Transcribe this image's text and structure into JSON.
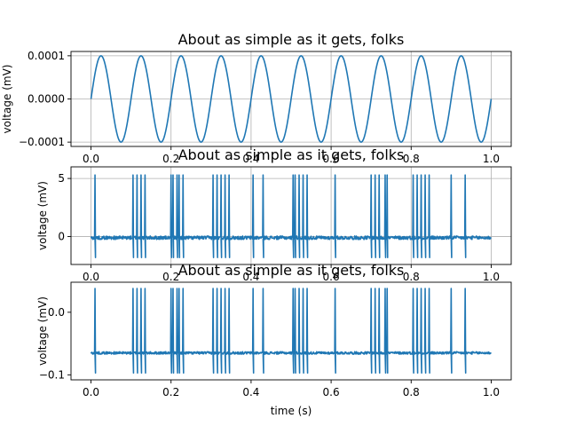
{
  "figure": {
    "background": "#ffffff",
    "line_color": "#1f77b4"
  },
  "chart_data": [
    {
      "type": "line",
      "title": "About as simple as it gets, folks",
      "xlabel": "",
      "ylabel": "voltage (mV)",
      "xlim": [
        -0.05,
        1.05
      ],
      "ylim": [
        -0.00011,
        0.00011
      ],
      "xticks": [
        "0.0",
        "0.2",
        "0.4",
        "0.6",
        "0.8",
        "1.0"
      ],
      "xtick_values": [
        0.0,
        0.2,
        0.4,
        0.6,
        0.8,
        1.0
      ],
      "yticks": [
        "−0.0001",
        "0.0000",
        "0.0001"
      ],
      "ytick_values": [
        -0.0001,
        0.0,
        0.0001
      ],
      "grid": true,
      "series": [
        {
          "kind": "sine",
          "amplitude": 0.0001,
          "frequency_hz": 10,
          "x_range": [
            0,
            1
          ]
        }
      ]
    },
    {
      "type": "line",
      "title": "About as simple as it gets, folks",
      "xlabel": "",
      "ylabel": "voltage (mV)",
      "xlim": [
        -0.05,
        1.05
      ],
      "ylim": [
        -2.4,
        6.0
      ],
      "xticks": [
        "0.0",
        "0.2",
        "0.4",
        "0.6",
        "0.8",
        "1.0"
      ],
      "xtick_values": [
        0.0,
        0.2,
        0.4,
        0.6,
        0.8,
        1.0
      ],
      "yticks": [
        "0",
        "5"
      ],
      "ytick_values": [
        0,
        5
      ],
      "grid": true,
      "series": [
        {
          "kind": "spike_train",
          "baseline": -0.1,
          "noise": 0.15,
          "spike_peak": 5.3,
          "spike_trough": -1.8,
          "spike_times": [
            0.01,
            0.105,
            0.115,
            0.125,
            0.135,
            0.2,
            0.205,
            0.215,
            0.22,
            0.23,
            0.305,
            0.315,
            0.325,
            0.335,
            0.345,
            0.405,
            0.43,
            0.505,
            0.51,
            0.52,
            0.53,
            0.54,
            0.61,
            0.7,
            0.71,
            0.72,
            0.735,
            0.74,
            0.805,
            0.815,
            0.825,
            0.835,
            0.845,
            0.9,
            0.935
          ]
        }
      ]
    },
    {
      "type": "line",
      "title": "About as simple as it gets, folks",
      "xlabel": "time (s)",
      "ylabel": "voltage (mV)",
      "xlim": [
        -0.05,
        1.05
      ],
      "ylim": [
        -0.108,
        0.048
      ],
      "xticks": [
        "0.0",
        "0.2",
        "0.4",
        "0.6",
        "0.8",
        "1.0"
      ],
      "xtick_values": [
        0.0,
        0.2,
        0.4,
        0.6,
        0.8,
        1.0
      ],
      "yticks": [
        "−0.1",
        "0.0"
      ],
      "ytick_values": [
        -0.1,
        0.0
      ],
      "grid": false,
      "series": [
        {
          "kind": "spike_train",
          "baseline": -0.065,
          "noise": 0.002,
          "spike_peak": 0.038,
          "spike_trough": -0.097,
          "spike_times": [
            0.01,
            0.105,
            0.115,
            0.125,
            0.135,
            0.2,
            0.205,
            0.215,
            0.22,
            0.23,
            0.305,
            0.315,
            0.325,
            0.335,
            0.345,
            0.405,
            0.43,
            0.505,
            0.51,
            0.52,
            0.53,
            0.54,
            0.61,
            0.7,
            0.71,
            0.72,
            0.735,
            0.74,
            0.805,
            0.815,
            0.825,
            0.835,
            0.845,
            0.9,
            0.935
          ]
        }
      ]
    }
  ]
}
